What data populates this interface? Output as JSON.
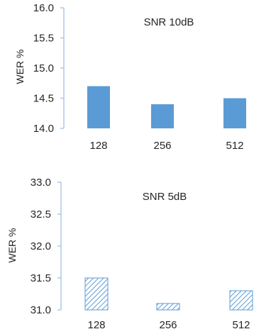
{
  "chart_data": [
    {
      "type": "bar",
      "title": "SNR 10dB",
      "ylabel": "WER %",
      "xlabel": "",
      "categories": [
        "128",
        "256",
        "512"
      ],
      "values": [
        14.7,
        14.4,
        14.5
      ],
      "ylim": [
        14.0,
        16.0
      ],
      "yticks": [
        "14.0",
        "14.5",
        "15.0",
        "15.5",
        "16.0"
      ],
      "grid": false,
      "bar_fill": "solid",
      "bar_color": "#5b9bd5"
    },
    {
      "type": "bar",
      "title": "SNR 5dB",
      "ylabel": "WER %",
      "xlabel": "",
      "categories": [
        "128",
        "256",
        "512"
      ],
      "values": [
        31.5,
        31.1,
        31.3
      ],
      "ylim": [
        31.0,
        33.0
      ],
      "yticks": [
        "31.0",
        "31.5",
        "32.0",
        "32.5",
        "33.0"
      ],
      "grid": false,
      "bar_fill": "hatched",
      "bar_color": "#5b9bd5"
    }
  ],
  "colors": {
    "axis": "#aac8e8",
    "text": "#262626"
  }
}
